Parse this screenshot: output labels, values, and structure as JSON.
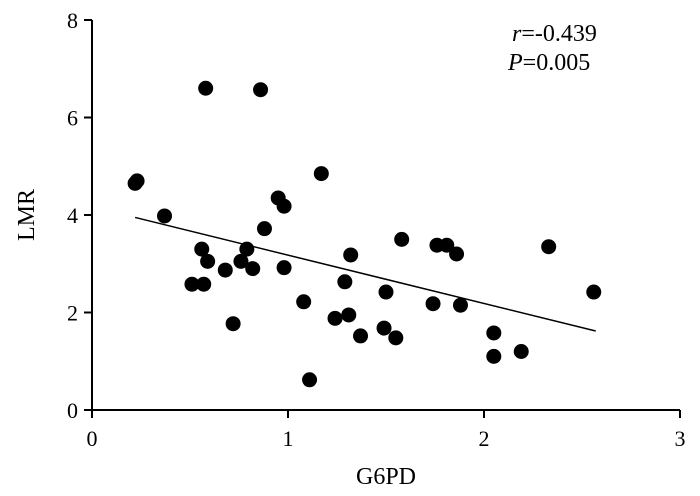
{
  "chart_data": {
    "type": "scatter",
    "title": "",
    "xlabel": "G6PD",
    "ylabel": "LMR",
    "xlim": [
      0,
      3
    ],
    "ylim": [
      0,
      8
    ],
    "x_ticks": [
      "0",
      "1",
      "2",
      "3"
    ],
    "y_ticks": [
      "0",
      "2",
      "4",
      "6",
      "8"
    ],
    "grid": false,
    "annotations": {
      "r_symbol": "r",
      "r_value": "=-0.439",
      "p_symbol": "P",
      "p_value": "=0.005"
    },
    "trendline": {
      "x": [
        0.22,
        2.57
      ],
      "y": [
        3.95,
        1.62
      ]
    },
    "points": [
      {
        "x": 0.22,
        "y": 4.65
      },
      {
        "x": 0.23,
        "y": 4.7
      },
      {
        "x": 0.37,
        "y": 3.98
      },
      {
        "x": 0.51,
        "y": 2.58
      },
      {
        "x": 0.56,
        "y": 3.3
      },
      {
        "x": 0.57,
        "y": 2.58
      },
      {
        "x": 0.58,
        "y": 6.6
      },
      {
        "x": 0.59,
        "y": 3.05
      },
      {
        "x": 0.68,
        "y": 2.87
      },
      {
        "x": 0.72,
        "y": 1.77
      },
      {
        "x": 0.76,
        "y": 3.05
      },
      {
        "x": 0.79,
        "y": 3.3
      },
      {
        "x": 0.82,
        "y": 2.9
      },
      {
        "x": 0.86,
        "y": 6.57
      },
      {
        "x": 0.88,
        "y": 3.72
      },
      {
        "x": 0.95,
        "y": 4.35
      },
      {
        "x": 0.98,
        "y": 4.18
      },
      {
        "x": 0.98,
        "y": 2.92
      },
      {
        "x": 1.08,
        "y": 2.22
      },
      {
        "x": 1.11,
        "y": 0.62
      },
      {
        "x": 1.17,
        "y": 4.85
      },
      {
        "x": 1.24,
        "y": 1.88
      },
      {
        "x": 1.29,
        "y": 2.63
      },
      {
        "x": 1.31,
        "y": 1.95
      },
      {
        "x": 1.32,
        "y": 3.18
      },
      {
        "x": 1.37,
        "y": 1.52
      },
      {
        "x": 1.49,
        "y": 1.68
      },
      {
        "x": 1.5,
        "y": 2.42
      },
      {
        "x": 1.55,
        "y": 1.48
      },
      {
        "x": 1.58,
        "y": 3.5
      },
      {
        "x": 1.74,
        "y": 2.18
      },
      {
        "x": 1.76,
        "y": 3.38
      },
      {
        "x": 1.81,
        "y": 3.38
      },
      {
        "x": 1.86,
        "y": 3.2
      },
      {
        "x": 1.88,
        "y": 2.15
      },
      {
        "x": 2.05,
        "y": 1.58
      },
      {
        "x": 2.05,
        "y": 1.1
      },
      {
        "x": 2.19,
        "y": 1.2
      },
      {
        "x": 2.33,
        "y": 3.35
      },
      {
        "x": 2.56,
        "y": 2.42
      }
    ]
  }
}
